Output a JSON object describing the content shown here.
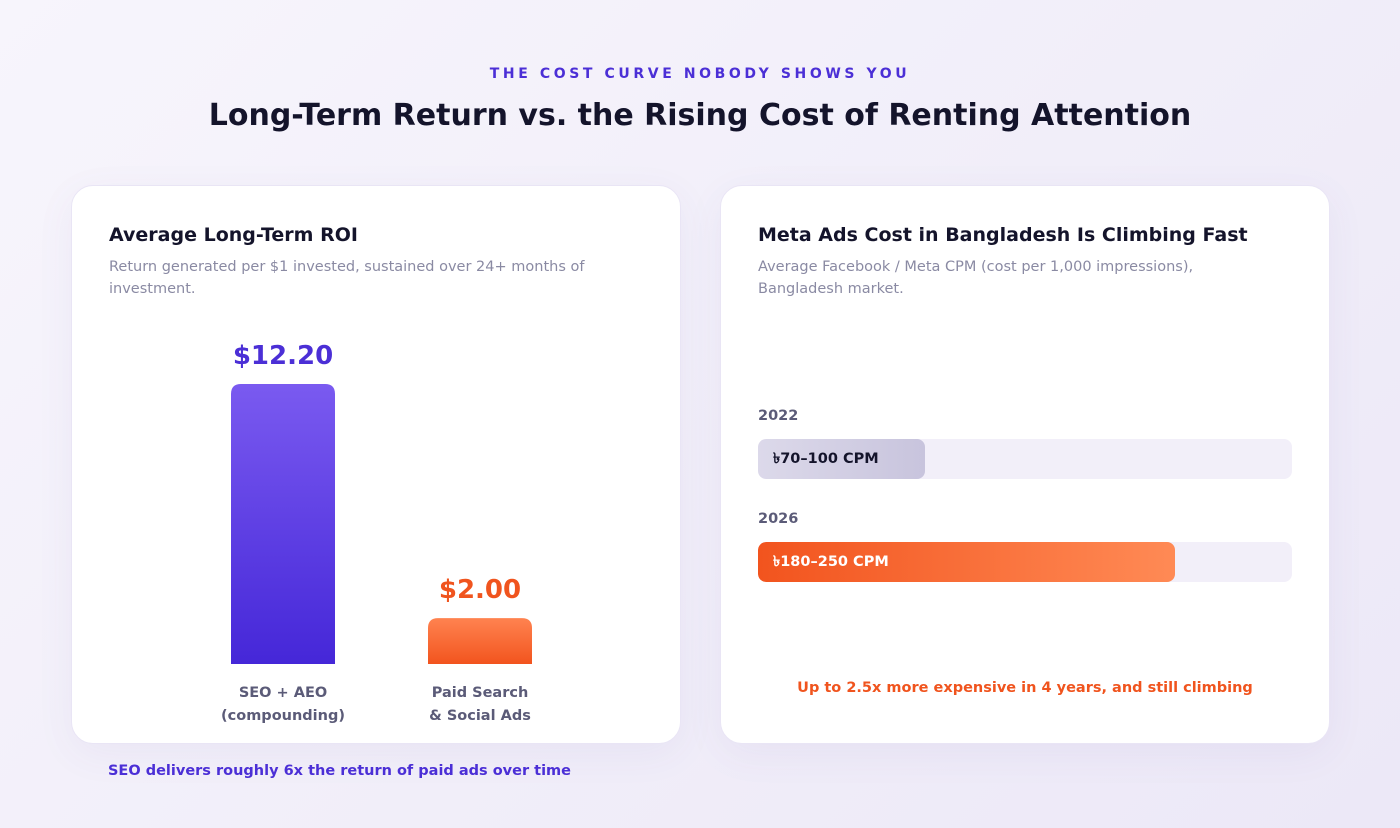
{
  "header": {
    "eyebrow": "THE COST CURVE NOBODY SHOWS YOU",
    "title": "Long-Term Return vs. the Rising Cost of Renting Attention"
  },
  "left_card": {
    "title": "Average Long-Term ROI",
    "subtitle": "Return generated per $1 invested, sustained over 24+ months of investment.",
    "footnote": "SEO delivers roughly 6x the return of paid ads over time"
  },
  "right_card": {
    "title": "Meta Ads Cost in Bangladesh Is Climbing Fast",
    "subtitle": "Average Facebook / Meta CPM (cost per 1,000 impressions), Bangladesh market.",
    "rows": [
      {
        "year": "2022",
        "label": "৳70–100 CPM"
      },
      {
        "year": "2026",
        "label": "৳180–250 CPM"
      }
    ],
    "note": "Up to 2.5x more expensive in 4 years, and still climbing"
  },
  "chart_data": [
    {
      "type": "bar",
      "title": "Average Long-Term ROI",
      "categories": [
        "SEO + AEO\n(compounding)",
        "Paid Search\n& Social Ads"
      ],
      "values": [
        12.2,
        2.0
      ],
      "value_labels": [
        "$12.20",
        "$2.00"
      ],
      "colors": [
        "#5a3ae6",
        "#f5622a"
      ],
      "ylim": [
        0,
        12.2
      ],
      "grid": false
    },
    {
      "type": "bar",
      "orientation": "horizontal",
      "title": "Meta Ads Cost in Bangladesh Is Climbing Fast",
      "categories": [
        "2022",
        "2026"
      ],
      "ranges": [
        [
          70,
          100
        ],
        [
          180,
          250
        ]
      ],
      "values": [
        100,
        250
      ],
      "value_labels": [
        "৳70–100 CPM",
        "৳180–250 CPM"
      ],
      "colors": [
        "#d3d0e5",
        "#f7622a"
      ],
      "xlim": [
        0,
        320
      ],
      "grid": false
    }
  ],
  "colors": {
    "accent_purple": "#4b2fd6",
    "accent_orange": "#f0541e",
    "title_dark": "#14142b",
    "muted_text": "#8a8aa3"
  }
}
